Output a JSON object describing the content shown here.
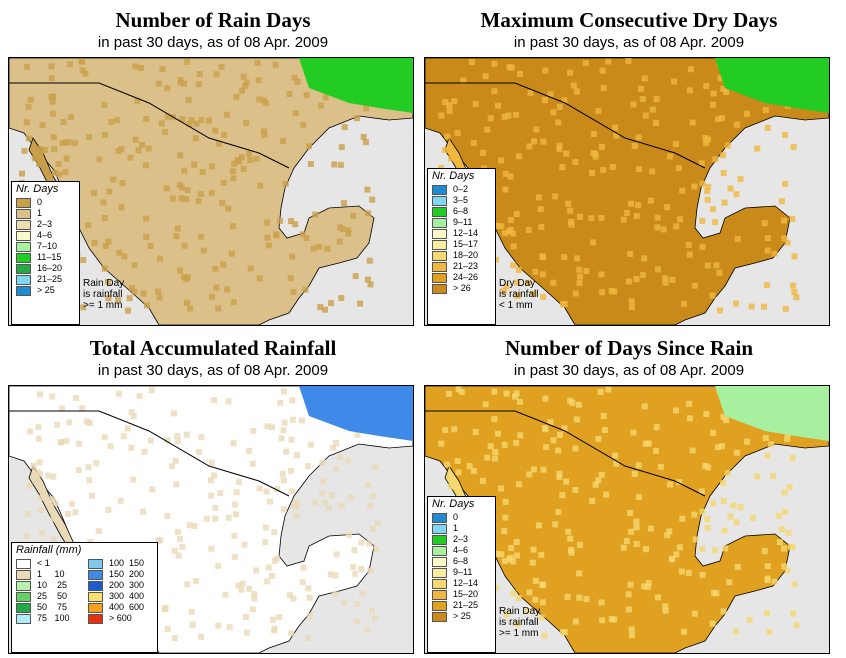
{
  "panels": [
    {
      "title": "Number of Rain Days",
      "subtitle": "in past 30 days, as of  08 Apr. 2009",
      "legend_title": "Nr. Days",
      "legend": [
        {
          "label": "0",
          "color": "#c9a04a"
        },
        {
          "label": "1",
          "color": "#dcc08a"
        },
        {
          "label": "2–3",
          "color": "#ecdcb0"
        },
        {
          "label": "4–6",
          "color": "#fafac8"
        },
        {
          "label": "7–10",
          "color": "#a6f0a0"
        },
        {
          "label": "11–15",
          "color": "#22cc22"
        },
        {
          "label": "16–20",
          "color": "#22aa44"
        },
        {
          "label": "21–25",
          "color": "#7fd8f0"
        },
        {
          "label": "> 25",
          "color": "#1f8ad0"
        }
      ],
      "note": [
        "Rain Day",
        "is rainfall",
        ">= 1 mm"
      ]
    },
    {
      "title": "Maximum Consecutive Dry Days",
      "subtitle": "in past 30 days, as of  08 Apr. 2009",
      "legend_title": "Nr. Days",
      "legend": [
        {
          "label": "0–2",
          "color": "#1f8ad0"
        },
        {
          "label": "3–5",
          "color": "#7fd8f0"
        },
        {
          "label": "6–8",
          "color": "#22cc22"
        },
        {
          "label": "9–11",
          "color": "#a6f0a0"
        },
        {
          "label": "12–14",
          "color": "#fafac8"
        },
        {
          "label": "15–17",
          "color": "#f8f0a0"
        },
        {
          "label": "18–20",
          "color": "#f5d870"
        },
        {
          "label": "21–23",
          "color": "#f0b840"
        },
        {
          "label": "24–26",
          "color": "#e0a020"
        },
        {
          "label": "> 26",
          "color": "#c98a1a"
        }
      ],
      "note": [
        "Dry Day",
        "is rainfall",
        "< 1 mm"
      ]
    },
    {
      "title": "Total Accumulated Rainfall",
      "subtitle": "in past 30 days, as of  08 Apr. 2009",
      "legend_title": "Rainfall (mm)",
      "legend": [
        {
          "label": "< 1",
          "color": "#ffffff"
        },
        {
          "label": "1     10",
          "color": "#ead9b6"
        },
        {
          "label": "10    25",
          "color": "#b8f0b0"
        },
        {
          "label": "25    50",
          "color": "#66d066"
        },
        {
          "label": "50    75",
          "color": "#22aa44"
        },
        {
          "label": "75   100",
          "color": "#b0ecf8"
        },
        {
          "label": "100  150",
          "color": "#7fc8f0"
        },
        {
          "label": "150  200",
          "color": "#3f8ae8"
        },
        {
          "label": "200  300",
          "color": "#1f5ac8"
        },
        {
          "label": "300  400",
          "color": "#f8e070"
        },
        {
          "label": "400  600",
          "color": "#f5a020"
        },
        {
          "label": "> 600",
          "color": "#e83010"
        }
      ],
      "note": []
    },
    {
      "title": "Number of Days Since Rain",
      "subtitle": "in past 30 days, as of  08 Apr. 2009",
      "legend_title": "Nr. Days",
      "legend": [
        {
          "label": "0",
          "color": "#1f8ad0"
        },
        {
          "label": "1",
          "color": "#7fd8f0"
        },
        {
          "label": "2–3",
          "color": "#22cc22"
        },
        {
          "label": "4–6",
          "color": "#a6f0a0"
        },
        {
          "label": "6–8",
          "color": "#fafac8"
        },
        {
          "label": "9–11",
          "color": "#f8f0a0"
        },
        {
          "label": "12–14",
          "color": "#f5d870"
        },
        {
          "label": "15–20",
          "color": "#f0b840"
        },
        {
          "label": "21–25",
          "color": "#e0a020"
        },
        {
          "label": "> 25",
          "color": "#c98a1a"
        }
      ],
      "note": [
        "Rain Day",
        "is rainfall",
        ">= 1 mm"
      ]
    }
  ],
  "colors": {
    "ocean": "#e6e6e6",
    "border": "#000000"
  }
}
